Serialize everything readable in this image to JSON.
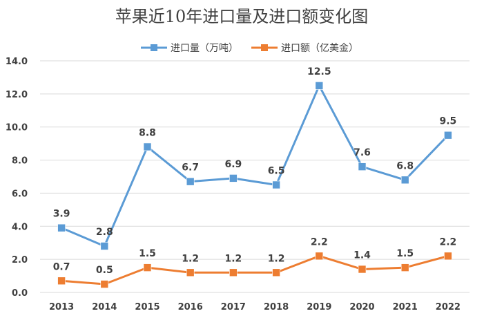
{
  "chart_data": {
    "type": "line",
    "title": "苹果近10年进口量及进口额变化图",
    "xlabel": "",
    "ylabel": "",
    "categories": [
      "2013",
      "2014",
      "2015",
      "2016",
      "2017",
      "2018",
      "2019",
      "2020",
      "2021",
      "2022"
    ],
    "ylim": [
      0,
      14
    ],
    "yticks": [
      "0.0",
      "2.0",
      "4.0",
      "6.0",
      "8.0",
      "10.0",
      "12.0",
      "14.0"
    ],
    "grid": true,
    "legend_position": "top",
    "series": [
      {
        "name": "进口量（万吨）",
        "color": "#5b9bd5",
        "values": [
          3.9,
          2.8,
          8.8,
          6.7,
          6.9,
          6.5,
          12.5,
          7.6,
          6.8,
          9.5
        ],
        "labels": [
          "3.9",
          "2.8",
          "8.8",
          "6.7",
          "6.9",
          "6.5",
          "12.5",
          "7.6",
          "6.8",
          "9.5"
        ]
      },
      {
        "name": "进口额（亿美金）",
        "color": "#ed7d31",
        "values": [
          0.7,
          0.5,
          1.5,
          1.2,
          1.2,
          1.2,
          2.2,
          1.4,
          1.5,
          2.2
        ],
        "labels": [
          "0.7",
          "0.5",
          "1.5",
          "1.2",
          "1.2",
          "1.2",
          "2.2",
          "1.4",
          "1.5",
          "2.2"
        ]
      }
    ]
  }
}
